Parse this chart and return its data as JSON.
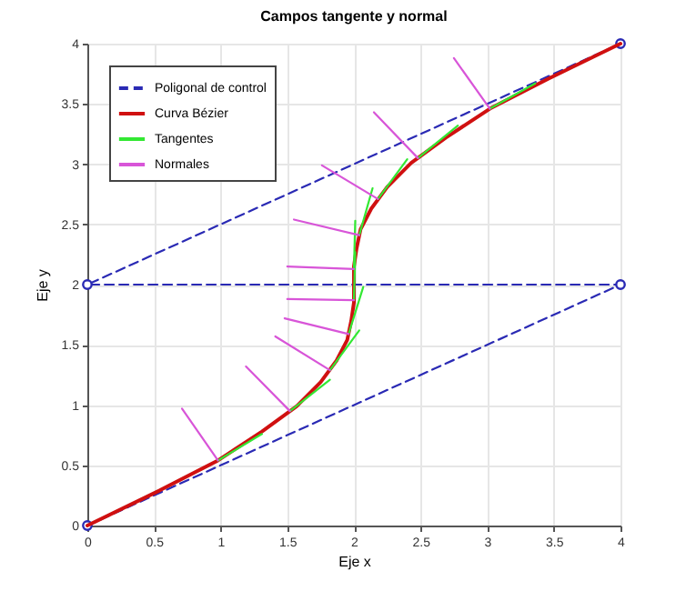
{
  "chart_data": {
    "type": "line",
    "title": "Campos tangente y normal",
    "xlabel": "Eje x",
    "ylabel": "Eje y",
    "xlim": [
      0,
      4
    ],
    "ylim": [
      0,
      4
    ],
    "xticks": [
      0,
      0.5,
      1,
      1.5,
      2,
      2.5,
      3,
      3.5,
      4
    ],
    "yticks": [
      0,
      0.5,
      1,
      1.5,
      2,
      2.5,
      3,
      3.5,
      4
    ],
    "grid": true,
    "legend": "top left",
    "series": [
      {
        "name": "Poligonal de control",
        "color": "#2a2ab4",
        "marker": "circle",
        "line_style": "dashed",
        "x": [
          0,
          4,
          0,
          4
        ],
        "values": [
          0,
          2,
          2,
          4
        ]
      },
      {
        "name": "Curva Bézier",
        "color": "#d01010",
        "line_style": "solid",
        "x": [
          0,
          0.54,
          0.98,
          1.31,
          1.57,
          1.75,
          1.87,
          1.95,
          1.98,
          2,
          2,
          2,
          2.02,
          2.05,
          2.13,
          2.25,
          2.43,
          2.69,
          3.02,
          3.46,
          4
        ],
        "values": [
          0,
          0.29,
          0.54,
          0.78,
          0.99,
          1.19,
          1.37,
          1.54,
          1.7,
          1.85,
          2,
          2.15,
          2.3,
          2.46,
          2.63,
          2.81,
          3.01,
          3.22,
          3.46,
          3.71,
          4
        ]
      },
      {
        "name": "Tangentes",
        "color": "#33e833",
        "line_style": "solid",
        "x": [
          0.98,
          1.31
        ],
        "values": [
          0.54,
          0.76
        ]
      },
      {
        "color": "#33e833",
        "line_style": "solid",
        "x": [
          1.52,
          1.82
        ],
        "values": [
          0.95,
          1.21
        ]
      },
      {
        "color": "#33e833",
        "line_style": "solid",
        "x": [
          1.82,
          2.04
        ],
        "values": [
          1.29,
          1.62
        ]
      },
      {
        "color": "#33e833",
        "line_style": "solid",
        "x": [
          1.96,
          2.07
        ],
        "values": [
          1.59,
          1.98
        ]
      },
      {
        "color": "#33e833",
        "line_style": "solid",
        "x": [
          2,
          2.01
        ],
        "values": [
          1.87,
          2.27
        ]
      },
      {
        "color": "#33e833",
        "line_style": "solid",
        "x": [
          2,
          2.01
        ],
        "values": [
          2.13,
          2.53
        ]
      },
      {
        "color": "#33e833",
        "line_style": "solid",
        "x": [
          2.04,
          2.14
        ],
        "values": [
          2.41,
          2.8
        ]
      },
      {
        "color": "#33e833",
        "line_style": "solid",
        "x": [
          2.18,
          2.4
        ],
        "values": [
          2.71,
          3.04
        ]
      },
      {
        "color": "#33e833",
        "line_style": "solid",
        "x": [
          2.48,
          2.78
        ],
        "values": [
          3.05,
          3.32
        ]
      },
      {
        "color": "#33e833",
        "line_style": "solid",
        "x": [
          3.02,
          3.36
        ],
        "values": [
          3.46,
          3.67
        ]
      },
      {
        "name": "Normales",
        "color": "#d855d8",
        "line_style": "solid",
        "x": [
          0.98,
          0.71
        ],
        "values": [
          0.54,
          0.97
        ]
      },
      {
        "color": "#d855d8",
        "line_style": "solid",
        "x": [
          1.52,
          1.19
        ],
        "values": [
          0.95,
          1.32
        ]
      },
      {
        "color": "#d855d8",
        "line_style": "solid",
        "x": [
          1.82,
          1.41
        ],
        "values": [
          1.29,
          1.57
        ]
      },
      {
        "color": "#d855d8",
        "line_style": "solid",
        "x": [
          1.96,
          1.48
        ],
        "values": [
          1.59,
          1.72
        ]
      },
      {
        "color": "#d855d8",
        "line_style": "solid",
        "x": [
          2,
          1.5
        ],
        "values": [
          1.87,
          1.88
        ]
      },
      {
        "color": "#d855d8",
        "line_style": "solid",
        "x": [
          2,
          1.5
        ],
        "values": [
          2.13,
          2.15
        ]
      },
      {
        "color": "#d855d8",
        "line_style": "solid",
        "x": [
          2.04,
          1.55
        ],
        "values": [
          2.41,
          2.54
        ]
      },
      {
        "color": "#d855d8",
        "line_style": "solid",
        "x": [
          2.18,
          1.76
        ],
        "values": [
          2.71,
          2.99
        ]
      },
      {
        "color": "#d855d8",
        "line_style": "solid",
        "x": [
          2.48,
          2.15
        ],
        "values": [
          3.05,
          3.43
        ]
      },
      {
        "color": "#d855d8",
        "line_style": "solid",
        "x": [
          3.02,
          2.75
        ],
        "values": [
          3.46,
          3.88
        ]
      }
    ]
  }
}
